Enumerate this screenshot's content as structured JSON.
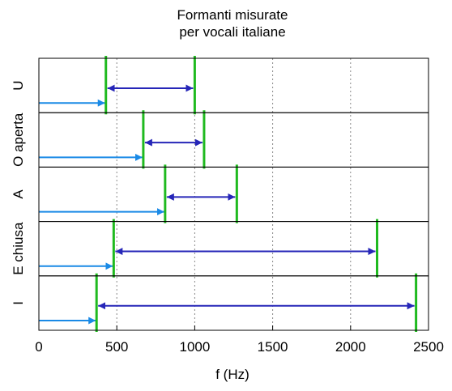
{
  "chart_data": {
    "type": "interval",
    "title": [
      "Formanti misurate",
      "per vocali italiane"
    ],
    "xlabel": "f (Hz)",
    "ylabel": "",
    "xlim": [
      0,
      2500
    ],
    "x_ticks": [
      {
        "value": 0,
        "label": "0"
      },
      {
        "value": 500,
        "label": "500"
      },
      {
        "value": 1000,
        "label": "1000"
      },
      {
        "value": 1500,
        "label": "1500"
      },
      {
        "value": 2000,
        "label": "2000"
      },
      {
        "value": 2500,
        "label": "2500"
      }
    ],
    "grid": {
      "x": true,
      "y": false,
      "style": "dotted"
    },
    "legend": "none",
    "colors": {
      "formant_marker": "#1fba1f",
      "f1_arrow": "#1a8ae6",
      "interval_arrow": "#2626b8",
      "grid": "#888888",
      "frame": "#000000"
    },
    "vowels": [
      {
        "label": "U",
        "f1": 430,
        "f2": 1000
      },
      {
        "label": "O aperta",
        "f1": 670,
        "f2": 1060
      },
      {
        "label": "A",
        "f1": 810,
        "f2": 1270
      },
      {
        "label": "E chiusa",
        "f1": 480,
        "f2": 2170
      },
      {
        "label": "I",
        "f1": 370,
        "f2": 2420
      }
    ]
  }
}
